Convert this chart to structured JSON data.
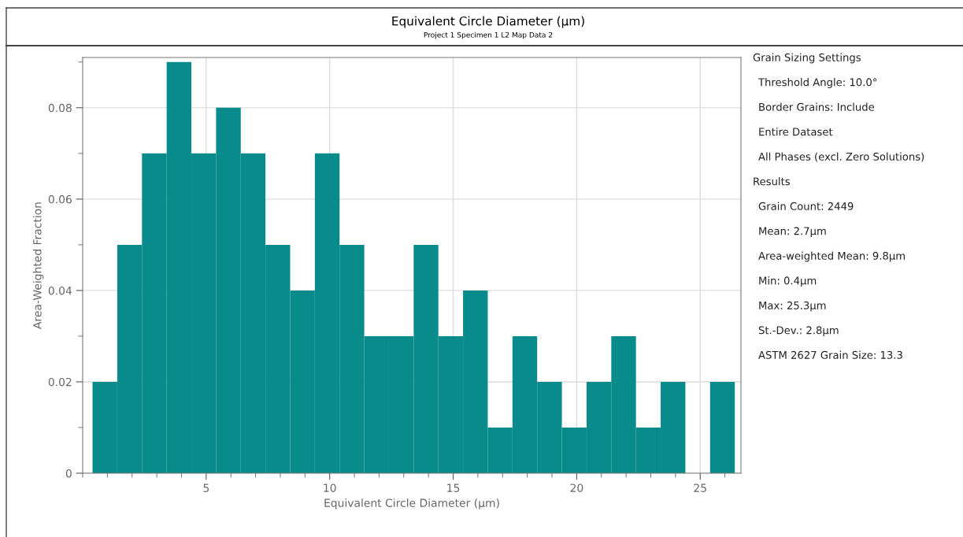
{
  "chart_data": {
    "type": "histogram",
    "title": "Equivalent Circle Diameter (µm)",
    "subtitle": "Project 1 Specimen 1 L2 Map Data 2",
    "xlabel": "Equivalent Circle Diameter (µm)",
    "ylabel": "Area-Weighted Fraction",
    "bins": [
      0.4,
      1.4,
      2.4,
      3.4,
      4.4,
      5.4,
      6.4,
      7.4,
      8.4,
      9.4,
      10.4,
      11.4,
      12.4,
      13.4,
      14.4,
      15.4,
      16.4,
      17.4,
      18.4,
      19.4,
      20.4,
      21.4,
      22.4,
      23.4,
      24.4,
      25.4,
      26.4
    ],
    "values": [
      0.02,
      0.05,
      0.07,
      0.09,
      0.07,
      0.08,
      0.07,
      0.05,
      0.04,
      0.07,
      0.05,
      0.03,
      0.03,
      0.05,
      0.03,
      0.04,
      0.01,
      0.03,
      0.02,
      0.01,
      0.02,
      0.03,
      0.01,
      0.02,
      0,
      0.02
    ],
    "color": "#0a8b8b",
    "xlim": [
      0,
      26.65
    ],
    "ylim": [
      0,
      0.091
    ],
    "xticks": [
      5,
      10,
      15,
      20,
      25
    ],
    "yticks": [
      0,
      0.02,
      0.04,
      0.06,
      0.08
    ],
    "grid": true,
    "annotations": [
      "Grain Sizing Settings",
      "Threshold Angle: 10.0°",
      "Border Grains: Include",
      "Entire Dataset",
      "All Phases (excl. Zero Solutions)",
      "Results",
      "Grain Count: 2449",
      "Mean: 2.7µm",
      "Area-weighted Mean: 9.8µm",
      "Min: 0.4µm",
      "Max: 25.3µm",
      "St.-Dev.: 2.8µm",
      "ASTM 2627 Grain Size: 13.3"
    ]
  }
}
